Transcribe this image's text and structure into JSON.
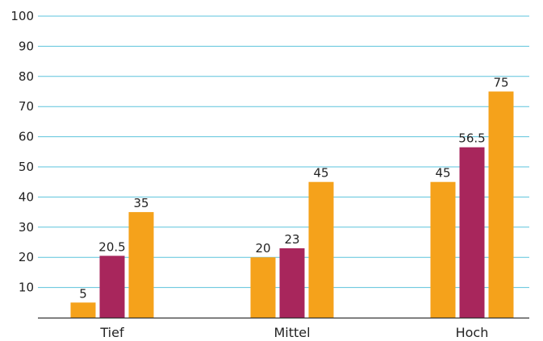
{
  "chart_data": {
    "type": "bar",
    "title": "",
    "xlabel": "",
    "ylabel": "",
    "categories": [
      "Tief",
      "Mittel",
      "Hoch"
    ],
    "series": [
      {
        "values": [
          5,
          20,
          45
        ],
        "color": "#F5A21B"
      },
      {
        "values": [
          20.5,
          23,
          56.5
        ],
        "color": "#A8265C"
      },
      {
        "values": [
          35,
          45,
          75
        ],
        "color": "#F5A21B"
      }
    ],
    "ylim": [
      0,
      100
    ],
    "yticks": [
      10,
      20,
      30,
      40,
      50,
      60,
      70,
      80,
      90,
      100
    ],
    "ytick_labels": [
      "10",
      "20",
      "30",
      "40",
      "50",
      "60",
      "70",
      "80",
      "90",
      "100"
    ],
    "data_labels": [
      [
        "5",
        "20",
        "45"
      ],
      [
        "20.5",
        "23",
        "56.5"
      ],
      [
        "35",
        "45",
        "75"
      ]
    ],
    "grid": true,
    "grid_color": "#5BC3DC",
    "axis_color": "#333333",
    "legend": "none"
  }
}
